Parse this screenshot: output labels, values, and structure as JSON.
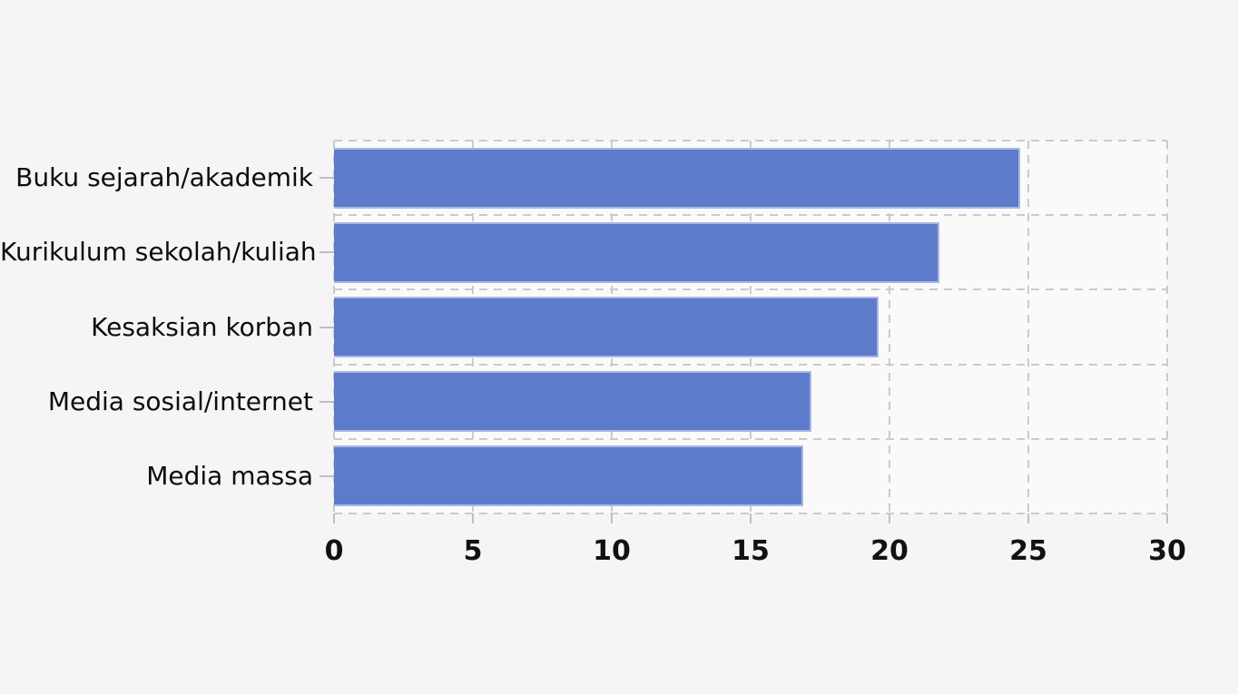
{
  "page": {
    "background": "#f4f5f4"
  },
  "chart_data": {
    "type": "bar",
    "orientation": "horizontal",
    "title": "",
    "categories": [
      "Buku sejarah/akademik",
      "Kurikulum sekolah/kuliah",
      "Kesaksian korban",
      "Media sosial/internet",
      "Media massa"
    ],
    "values": [
      24.7,
      21.8,
      19.6,
      17.2,
      16.9
    ],
    "xlabel": "",
    "ylabel": "",
    "xlim": [
      0,
      30
    ],
    "x_ticks": [
      0,
      5,
      10,
      15,
      20,
      25,
      30
    ],
    "grid": "dashed",
    "legend": "none",
    "colors": {
      "bar_fill": "#5d7bcb",
      "bar_border": "#a8b6e4",
      "grid_line": "#cbcbcb",
      "tick_mark": "#bfbfbf",
      "plot_background": "#fafafa",
      "page_background": "#f4f5f4",
      "text": "#111111"
    }
  }
}
